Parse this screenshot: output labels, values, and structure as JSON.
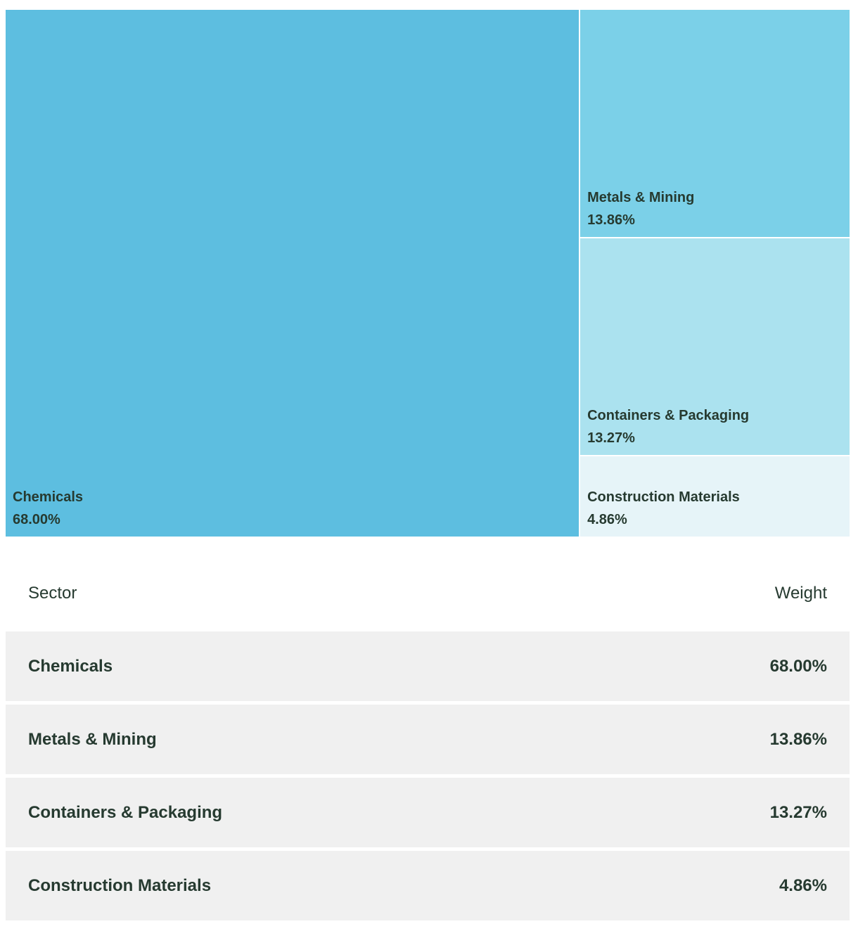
{
  "chart_data": {
    "type": "treemap",
    "items": [
      {
        "name": "Chemicals",
        "value": 68.0,
        "label": "68.00%",
        "color": "#5dbee0"
      },
      {
        "name": "Metals & Mining",
        "value": 13.86,
        "label": "13.86%",
        "color": "#7bd0e8"
      },
      {
        "name": "Containers & Packaging",
        "value": 13.27,
        "label": "13.27%",
        "color": "#abe2ef"
      },
      {
        "name": "Construction Materials",
        "value": 4.86,
        "label": "4.86%",
        "color": "#e6f4f8"
      }
    ]
  },
  "table": {
    "headers": {
      "sector": "Sector",
      "weight": "Weight"
    },
    "rows": [
      {
        "sector": "Chemicals",
        "weight": "68.00%"
      },
      {
        "sector": "Metals & Mining",
        "weight": "13.86%"
      },
      {
        "sector": "Containers & Packaging",
        "weight": "13.27%"
      },
      {
        "sector": "Construction Materials",
        "weight": "4.86%"
      }
    ]
  }
}
